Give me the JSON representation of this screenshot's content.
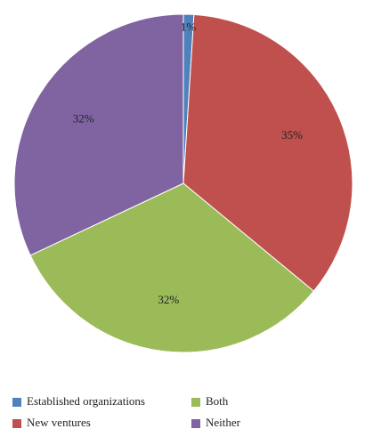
{
  "chart_data": {
    "type": "pie",
    "categories": [
      "Established organizations",
      "New ventures",
      "Both",
      "Neither"
    ],
    "values": [
      1,
      35,
      32,
      32
    ],
    "value_labels": [
      "1%",
      "35%",
      "32%",
      "32%"
    ],
    "colors": [
      "#4f81bd",
      "#c0504d",
      "#9bbb59",
      "#8064a2"
    ],
    "legend": "bottom"
  }
}
